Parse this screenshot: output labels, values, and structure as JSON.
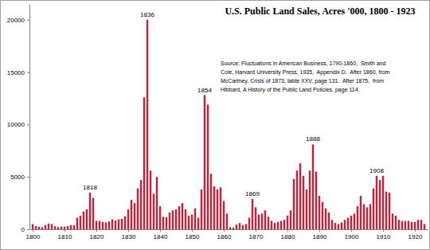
{
  "chart_data": {
    "type": "bar",
    "title": "U.S. Public Land Sales, Acres '000, 1800 - 1923",
    "x": [
      1800,
      1801,
      1802,
      1803,
      1804,
      1805,
      1806,
      1807,
      1808,
      1809,
      1810,
      1811,
      1812,
      1813,
      1814,
      1815,
      1816,
      1817,
      1818,
      1819,
      1820,
      1821,
      1822,
      1823,
      1824,
      1825,
      1826,
      1827,
      1828,
      1829,
      1830,
      1831,
      1832,
      1833,
      1834,
      1835,
      1836,
      1837,
      1838,
      1839,
      1840,
      1841,
      1842,
      1843,
      1844,
      1845,
      1846,
      1847,
      1848,
      1849,
      1850,
      1851,
      1852,
      1853,
      1854,
      1855,
      1856,
      1857,
      1858,
      1859,
      1860,
      1861,
      1862,
      1863,
      1864,
      1865,
      1866,
      1867,
      1868,
      1869,
      1870,
      1871,
      1872,
      1873,
      1874,
      1875,
      1876,
      1877,
      1878,
      1879,
      1880,
      1881,
      1882,
      1883,
      1884,
      1885,
      1886,
      1887,
      1888,
      1889,
      1890,
      1891,
      1892,
      1893,
      1894,
      1895,
      1896,
      1897,
      1898,
      1899,
      1900,
      1901,
      1902,
      1903,
      1904,
      1905,
      1906,
      1907,
      1908,
      1909,
      1910,
      1911,
      1912,
      1913,
      1914,
      1915,
      1916,
      1917,
      1918,
      1919,
      1920,
      1921,
      1922,
      1923
    ],
    "values": [
      500,
      300,
      250,
      200,
      400,
      550,
      500,
      300,
      200,
      250,
      250,
      300,
      400,
      400,
      1100,
      1300,
      1700,
      1900,
      3500,
      3000,
      800,
      800,
      700,
      650,
      750,
      950,
      850,
      950,
      1000,
      1250,
      1900,
      2800,
      2500,
      3900,
      4700,
      12600,
      20000,
      5600,
      3400,
      5000,
      2200,
      1200,
      1150,
      1600,
      1800,
      1900,
      2200,
      2500,
      1900,
      1300,
      1400,
      2000,
      1100,
      3800,
      12800,
      11900,
      5300,
      4100,
      3800,
      4000,
      2700,
      1500,
      200,
      150,
      450,
      600,
      400,
      500,
      1100,
      2900,
      2100,
      1400,
      1500,
      1800,
      1200,
      800,
      600,
      700,
      800,
      900,
      1300,
      1800,
      4800,
      5600,
      6300,
      5100,
      3800,
      5600,
      8100,
      5500,
      3200,
      2600,
      2000,
      1600,
      900,
      600,
      500,
      650,
      900,
      1100,
      1300,
      1500,
      2200,
      3200,
      2400,
      2100,
      2400,
      3900,
      5100,
      4700,
      5100,
      3600,
      3500,
      1500,
      1300,
      900,
      800,
      800,
      800,
      700,
      700,
      900,
      900,
      500
    ],
    "color": "#b5283f",
    "xlim": [
      1799,
      1924
    ],
    "ylim": [
      0,
      21500
    ],
    "xticks": [
      1800,
      1810,
      1820,
      1830,
      1840,
      1850,
      1860,
      1870,
      1880,
      1890,
      1900,
      1910,
      1920
    ],
    "yticks": [
      0,
      5000,
      10000,
      15000,
      20000
    ],
    "grid": false,
    "annotations": [
      {
        "x": 1818,
        "text": "1818"
      },
      {
        "x": 1836,
        "text": "1836"
      },
      {
        "x": 1854,
        "text": "1854"
      },
      {
        "x": 1869,
        "text": "1869"
      },
      {
        "x": 1888,
        "text": "1888"
      },
      {
        "x": 1908,
        "text": "1908"
      }
    ],
    "note": [
      "Source: Fluctuations in American Business, 1790-1860,  Smith and",
      "Cole, Harvard University Press, 1935,  Appendix D.  After 1860, from",
      "McCartney, Crisis of 1873, table XXV, page 131.  After 1875,  from",
      "Hibbard, A History of the Public Land Policies, page 114."
    ]
  }
}
